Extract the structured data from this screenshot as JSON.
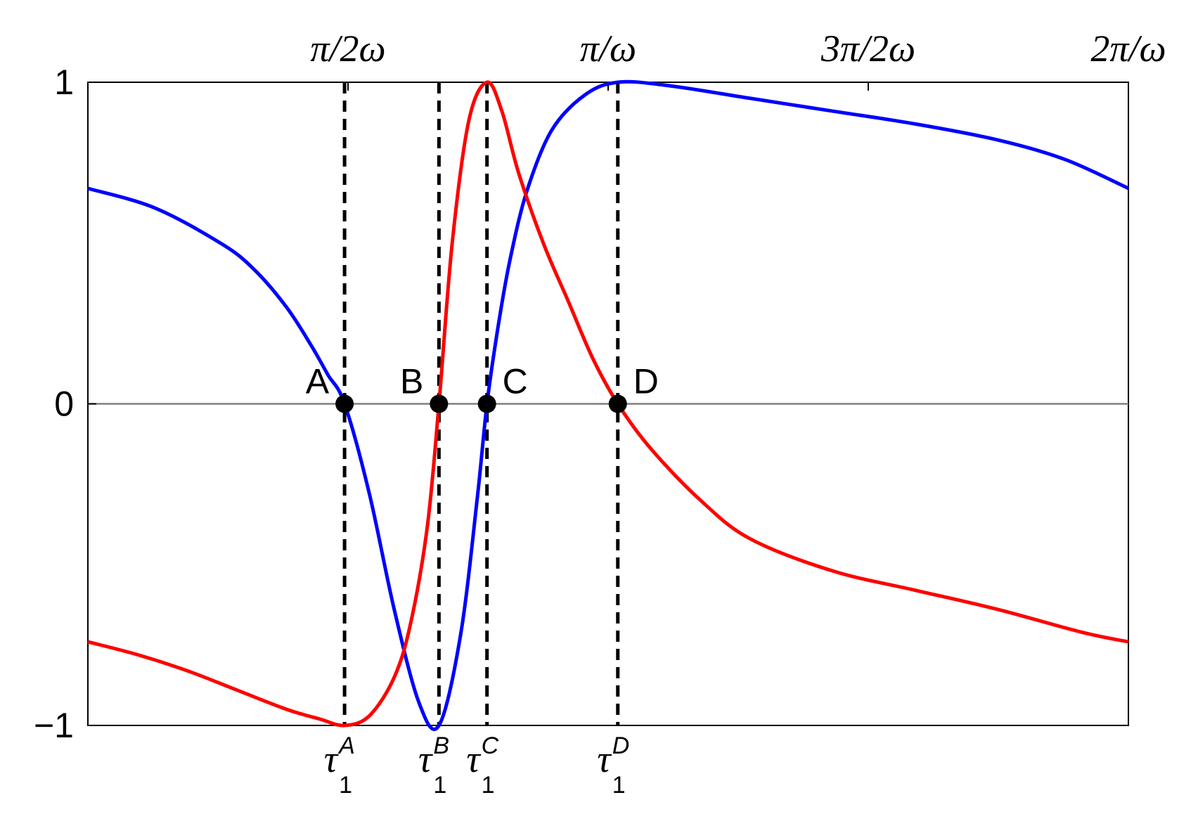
{
  "chart_data": {
    "type": "line",
    "title": "",
    "xlabel": "",
    "ylabel": "",
    "xlim": [
      0,
      6.2832
    ],
    "ylim": [
      -1,
      1
    ],
    "grid": false,
    "y_ticks": [
      {
        "value": -1,
        "label": "−1"
      },
      {
        "value": 0,
        "label": "0"
      },
      {
        "value": 1,
        "label": "1"
      }
    ],
    "x_top_ticks": [
      {
        "value": 1.5708,
        "label": "π/2ω"
      },
      {
        "value": 3.1416,
        "label": "π/ω"
      },
      {
        "value": 4.7124,
        "label": "3π/2ω"
      },
      {
        "value": 6.2832,
        "label": "2π/ω"
      }
    ],
    "tau_ticks": [
      {
        "value": 1.55,
        "base": "τ",
        "sub": "1",
        "sup": "A"
      },
      {
        "value": 2.12,
        "base": "τ",
        "sub": "1",
        "sup": "B"
      },
      {
        "value": 2.41,
        "base": "τ",
        "sub": "1",
        "sup": "C"
      },
      {
        "value": 3.2,
        "base": "τ",
        "sub": "1",
        "sup": "D"
      }
    ],
    "points": [
      {
        "label": "A",
        "x": 1.55,
        "y": 0
      },
      {
        "label": "B",
        "x": 2.12,
        "y": 0
      },
      {
        "label": "C",
        "x": 2.41,
        "y": 0
      },
      {
        "label": "D",
        "x": 3.2,
        "y": 0
      }
    ],
    "colors": {
      "blue": "#0000ff",
      "red": "#ff0000",
      "axis": "#808080",
      "dashed": "#000000"
    },
    "series": [
      {
        "color": "#0000ff",
        "x": [
          0,
          0.4,
          0.8,
          1.0,
          1.2,
          1.35,
          1.45,
          1.55,
          1.7,
          1.85,
          2.0,
          2.12,
          2.25,
          2.35,
          2.41,
          2.48,
          2.55,
          2.65,
          2.8,
          3.0,
          3.2,
          3.5,
          4.0,
          4.5,
          5.0,
          5.5,
          5.9,
          6.2832
        ],
        "y": [
          0.67,
          0.61,
          0.5,
          0.42,
          0.3,
          0.18,
          0.09,
          0.0,
          -0.28,
          -0.64,
          -0.93,
          -1.0,
          -0.72,
          -0.3,
          0.0,
          0.25,
          0.45,
          0.66,
          0.85,
          0.96,
          1.0,
          0.99,
          0.95,
          0.91,
          0.87,
          0.82,
          0.76,
          0.67
        ]
      },
      {
        "color": "#ff0000",
        "x": [
          0,
          0.3,
          0.6,
          0.9,
          1.2,
          1.4,
          1.55,
          1.7,
          1.85,
          1.95,
          2.05,
          2.12,
          2.2,
          2.3,
          2.41,
          2.5,
          2.6,
          2.75,
          2.9,
          3.05,
          3.2,
          3.4,
          3.7,
          4.0,
          4.5,
          5.0,
          5.5,
          6.0,
          6.2832
        ],
        "y": [
          -0.74,
          -0.78,
          -0.83,
          -0.89,
          -0.95,
          -0.98,
          -1.0,
          -0.97,
          -0.85,
          -0.68,
          -0.38,
          0.0,
          0.5,
          0.88,
          1.0,
          0.91,
          0.72,
          0.5,
          0.32,
          0.14,
          0.0,
          -0.14,
          -0.3,
          -0.42,
          -0.52,
          -0.58,
          -0.64,
          -0.71,
          -0.74
        ]
      }
    ]
  }
}
